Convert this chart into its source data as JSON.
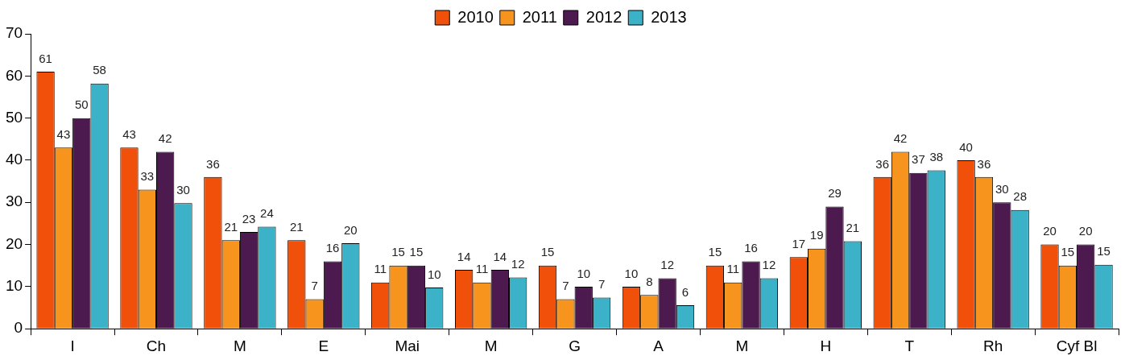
{
  "chart_data": {
    "type": "bar",
    "categories": [
      "I",
      "Ch",
      "M",
      "E",
      "Mai",
      "M",
      "G",
      "A",
      "M",
      "H",
      "T",
      "Rh",
      "Cyf Bl"
    ],
    "series": [
      {
        "name": "2010",
        "color": "#f0500a",
        "values": [
          61,
          43,
          36,
          21,
          11,
          14,
          15,
          10,
          15,
          17,
          36,
          40,
          20
        ],
        "value_labels": [
          "61",
          "43",
          "36",
          "21",
          "11",
          "14",
          "15",
          "10",
          "15",
          "17",
          "36",
          "40",
          "20"
        ]
      },
      {
        "name": "2011",
        "color": "#f7941d",
        "values": [
          43,
          33,
          21,
          7,
          15,
          11,
          7,
          8,
          11,
          19,
          42,
          36,
          15
        ],
        "value_labels": [
          "43",
          "33",
          "21",
          "7",
          "15",
          "11",
          "7",
          "8",
          "11",
          "19",
          "42",
          "36",
          "15"
        ]
      },
      {
        "name": "2012",
        "color": "#4d1a4f",
        "values": [
          50,
          42,
          23,
          16,
          15,
          14,
          10,
          12,
          16,
          29,
          37,
          30,
          20
        ],
        "value_labels": [
          "50",
          "42",
          "23",
          "16",
          "15",
          "14",
          "10",
          "12",
          "16",
          "29",
          "37",
          "30",
          "20"
        ]
      },
      {
        "name": "2013",
        "color": "#3bb2c8",
        "values": [
          58.2,
          29.8,
          24.2,
          20.3,
          9.8,
          12.2,
          7.4,
          5.6,
          12,
          20.8,
          37.6,
          28.2,
          15.2
        ],
        "value_labels": [
          "58",
          "30",
          "24",
          "20",
          "10",
          "12",
          "7",
          "6",
          "12",
          "21",
          "38",
          "28",
          "15"
        ]
      }
    ],
    "ylim": [
      0,
      70
    ],
    "yticks": [
      0,
      10,
      20,
      30,
      40,
      50,
      60,
      70
    ],
    "grid": false,
    "legend": "top"
  }
}
